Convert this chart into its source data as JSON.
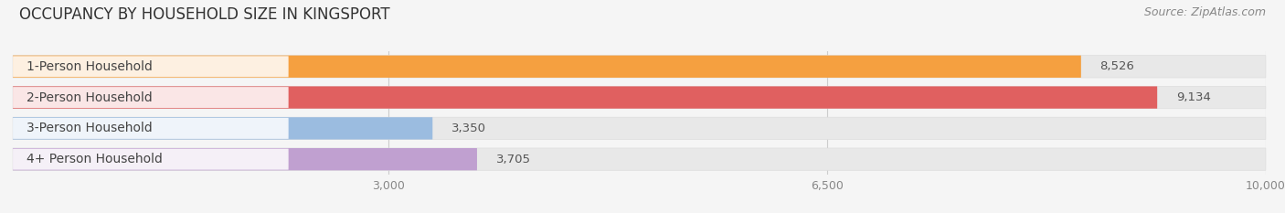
{
  "title": "OCCUPANCY BY HOUSEHOLD SIZE IN KINGSPORT",
  "source": "Source: ZipAtlas.com",
  "categories": [
    "1-Person Household",
    "2-Person Household",
    "3-Person Household",
    "4+ Person Household"
  ],
  "values": [
    8526,
    9134,
    3350,
    3705
  ],
  "bar_colors": [
    "#F5A040",
    "#E06060",
    "#9BBCE0",
    "#C0A0D0"
  ],
  "bg_row_colors": [
    "#F0F0F0",
    "#EBEBEB",
    "#F0F0F0",
    "#EBEBEB"
  ],
  "xlim": [
    0,
    10000
  ],
  "xticks": [
    3000,
    6500,
    10000
  ],
  "background_color": "#F5F5F5",
  "title_fontsize": 12,
  "source_fontsize": 9,
  "label_fontsize": 10,
  "value_fontsize": 9.5
}
